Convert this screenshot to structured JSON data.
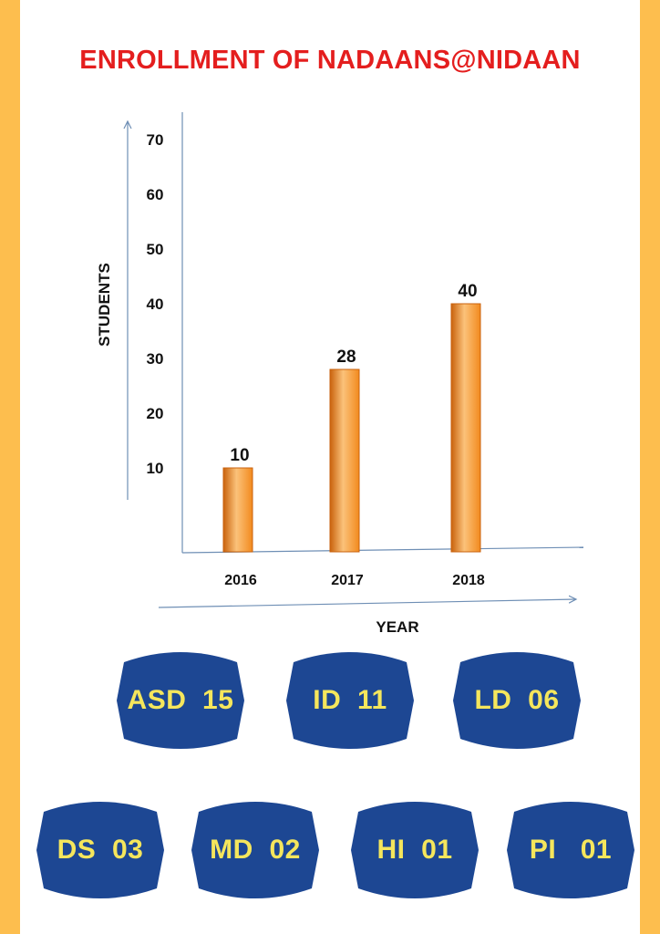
{
  "title": "ENROLLMENT OF NADAANS@NIDAAN",
  "colors": {
    "title": "#E41E1E",
    "bar": "#F28A1E",
    "bar_dark": "#C9620C",
    "bar_light": "#FBC27A",
    "axis": "#6F8FB5",
    "side_bar": "#FDBE4E",
    "tag_fill": "#1D4793",
    "tag_text": "#F5E65C"
  },
  "chart_data": {
    "type": "bar",
    "xlabel": "YEAR",
    "ylabel": "STUDENTS",
    "categories": [
      "2016",
      "2017",
      "2018"
    ],
    "values": [
      10,
      28,
      40
    ],
    "data_labels": [
      "10",
      "28",
      "40"
    ],
    "y_ticks": [
      "10",
      "20",
      "30",
      "40",
      "50",
      "60",
      "70"
    ],
    "ylim": [
      0,
      70
    ],
    "grid": false,
    "legend": "none"
  },
  "categories_tags": [
    {
      "label": "ASD  15"
    },
    {
      "label": "ID  11"
    },
    {
      "label": "LD  06"
    },
    {
      "label": "DS  03"
    },
    {
      "label": "MD  02"
    },
    {
      "label": "HI  01"
    },
    {
      "label": "PI   01"
    }
  ]
}
